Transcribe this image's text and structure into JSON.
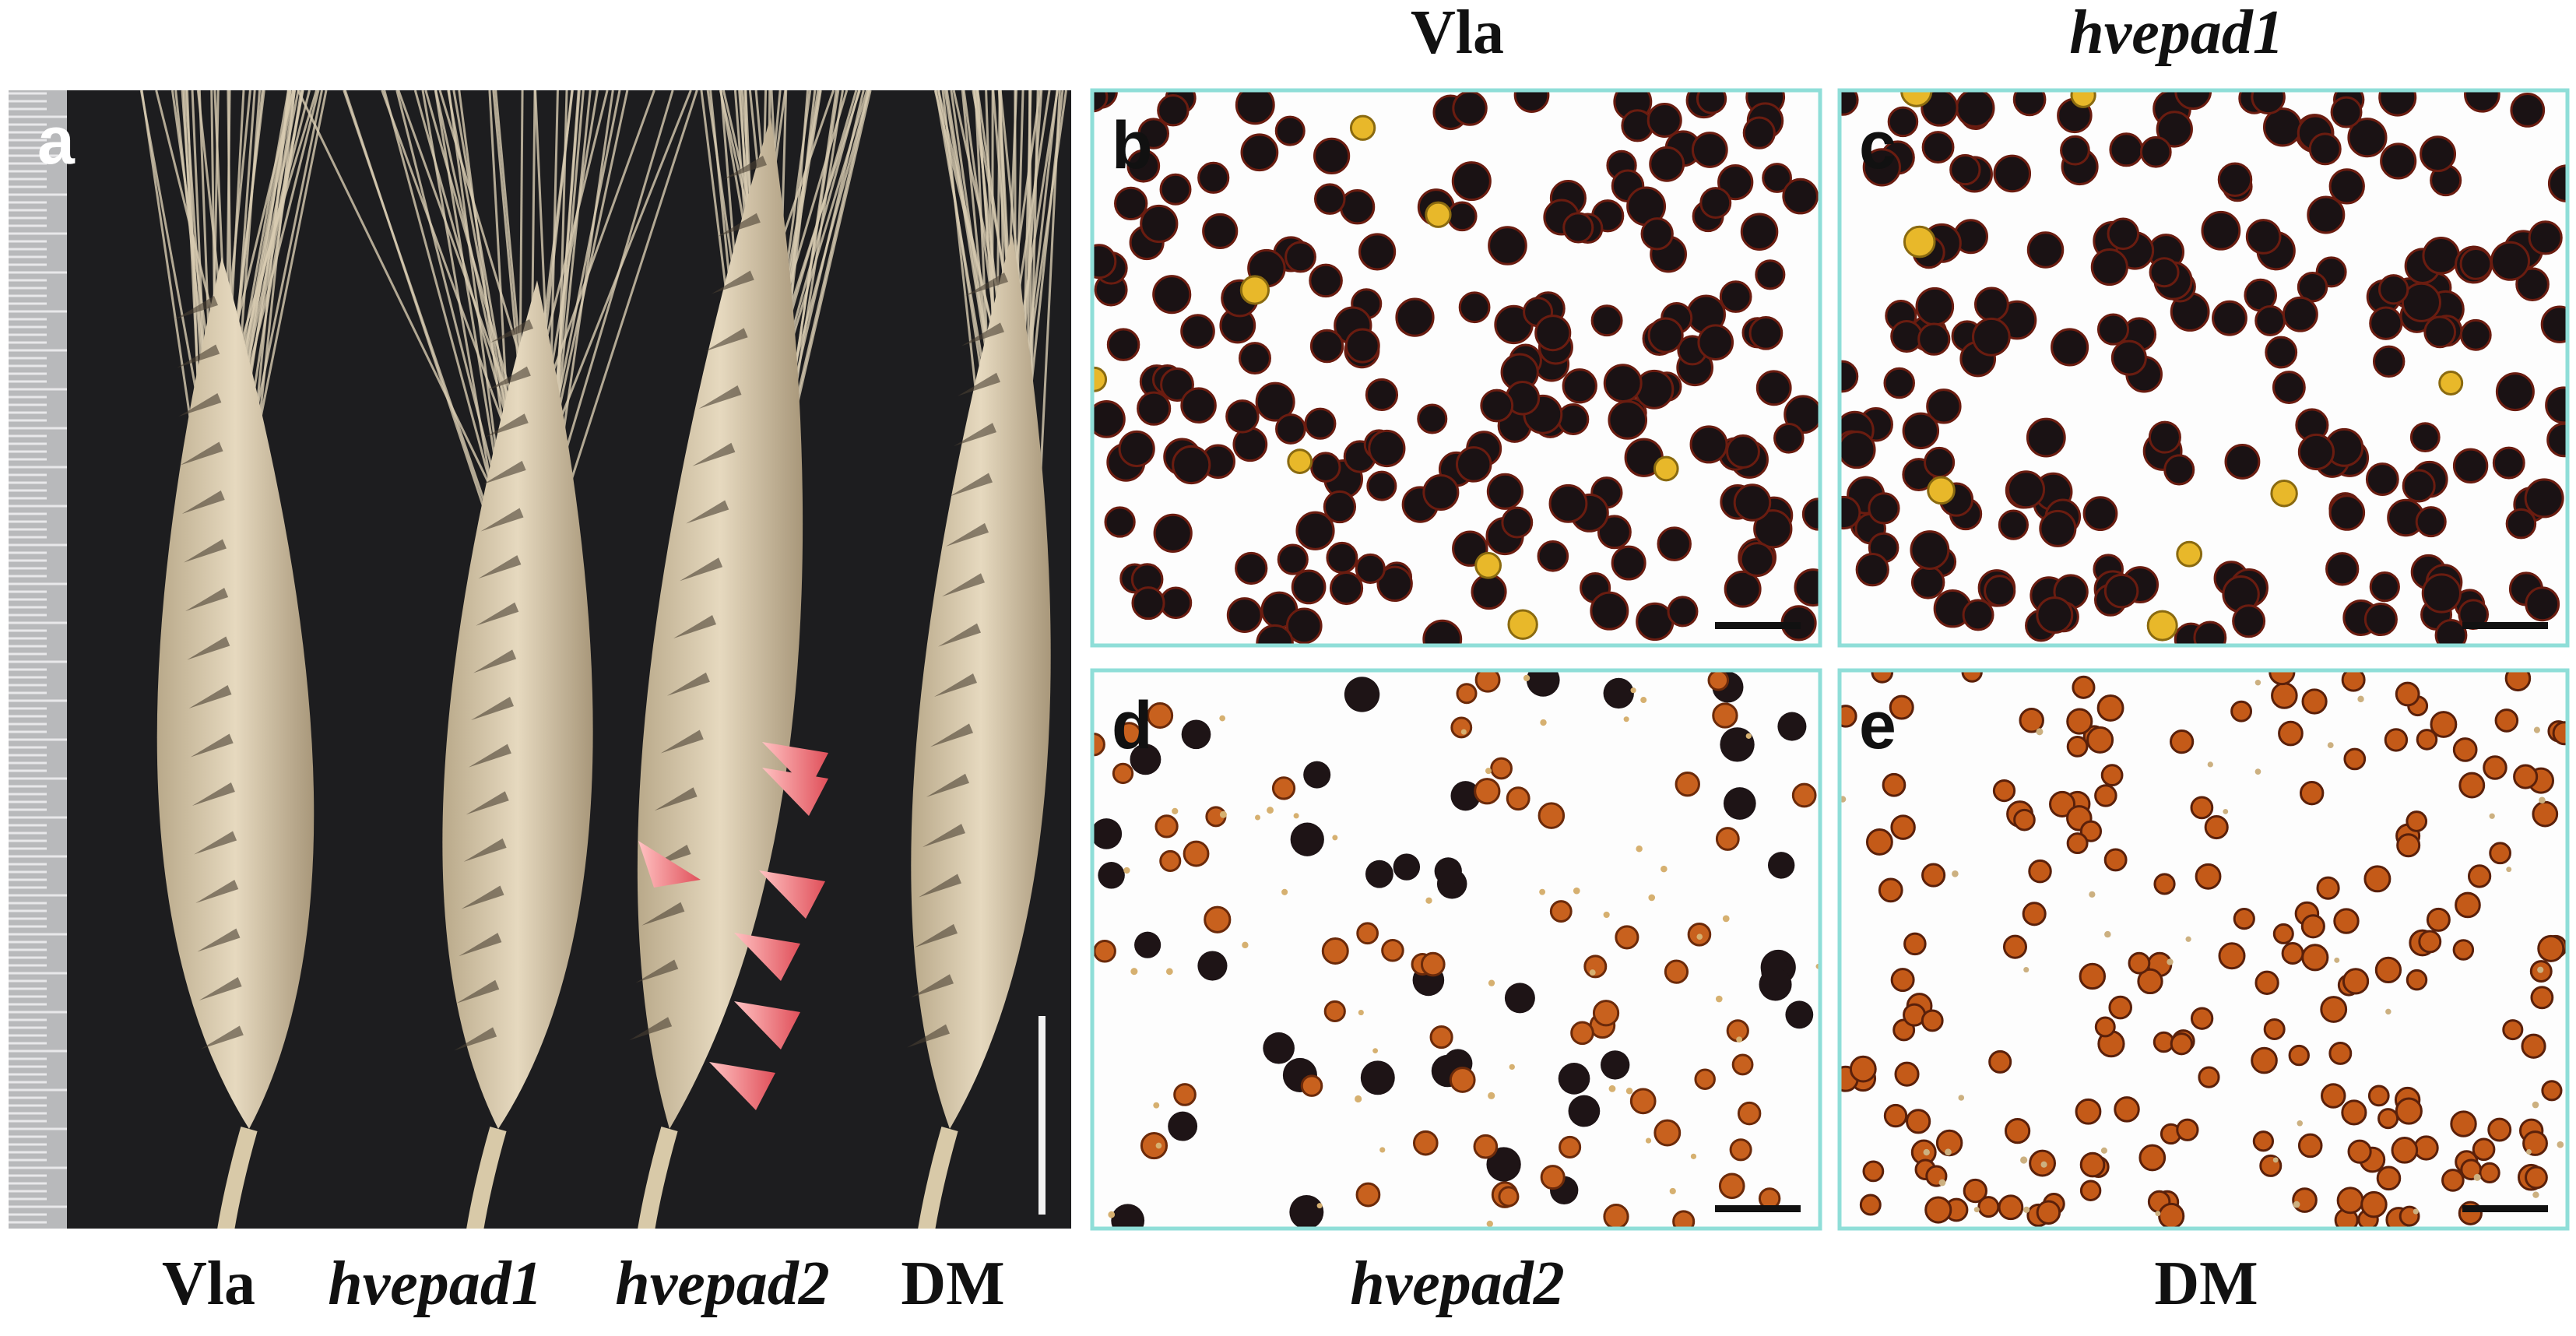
{
  "panel_a": {
    "label": "a",
    "genotypes": [
      "Vla",
      "hvepad1",
      "hvepad2",
      "DM"
    ]
  },
  "pollen_panels": [
    {
      "label": "b",
      "genotype": "Vla"
    },
    {
      "label": "c",
      "genotype": "hvepad1"
    },
    {
      "label": "d",
      "genotype": "hvepad2"
    },
    {
      "label": "e",
      "genotype": "DM"
    }
  ]
}
